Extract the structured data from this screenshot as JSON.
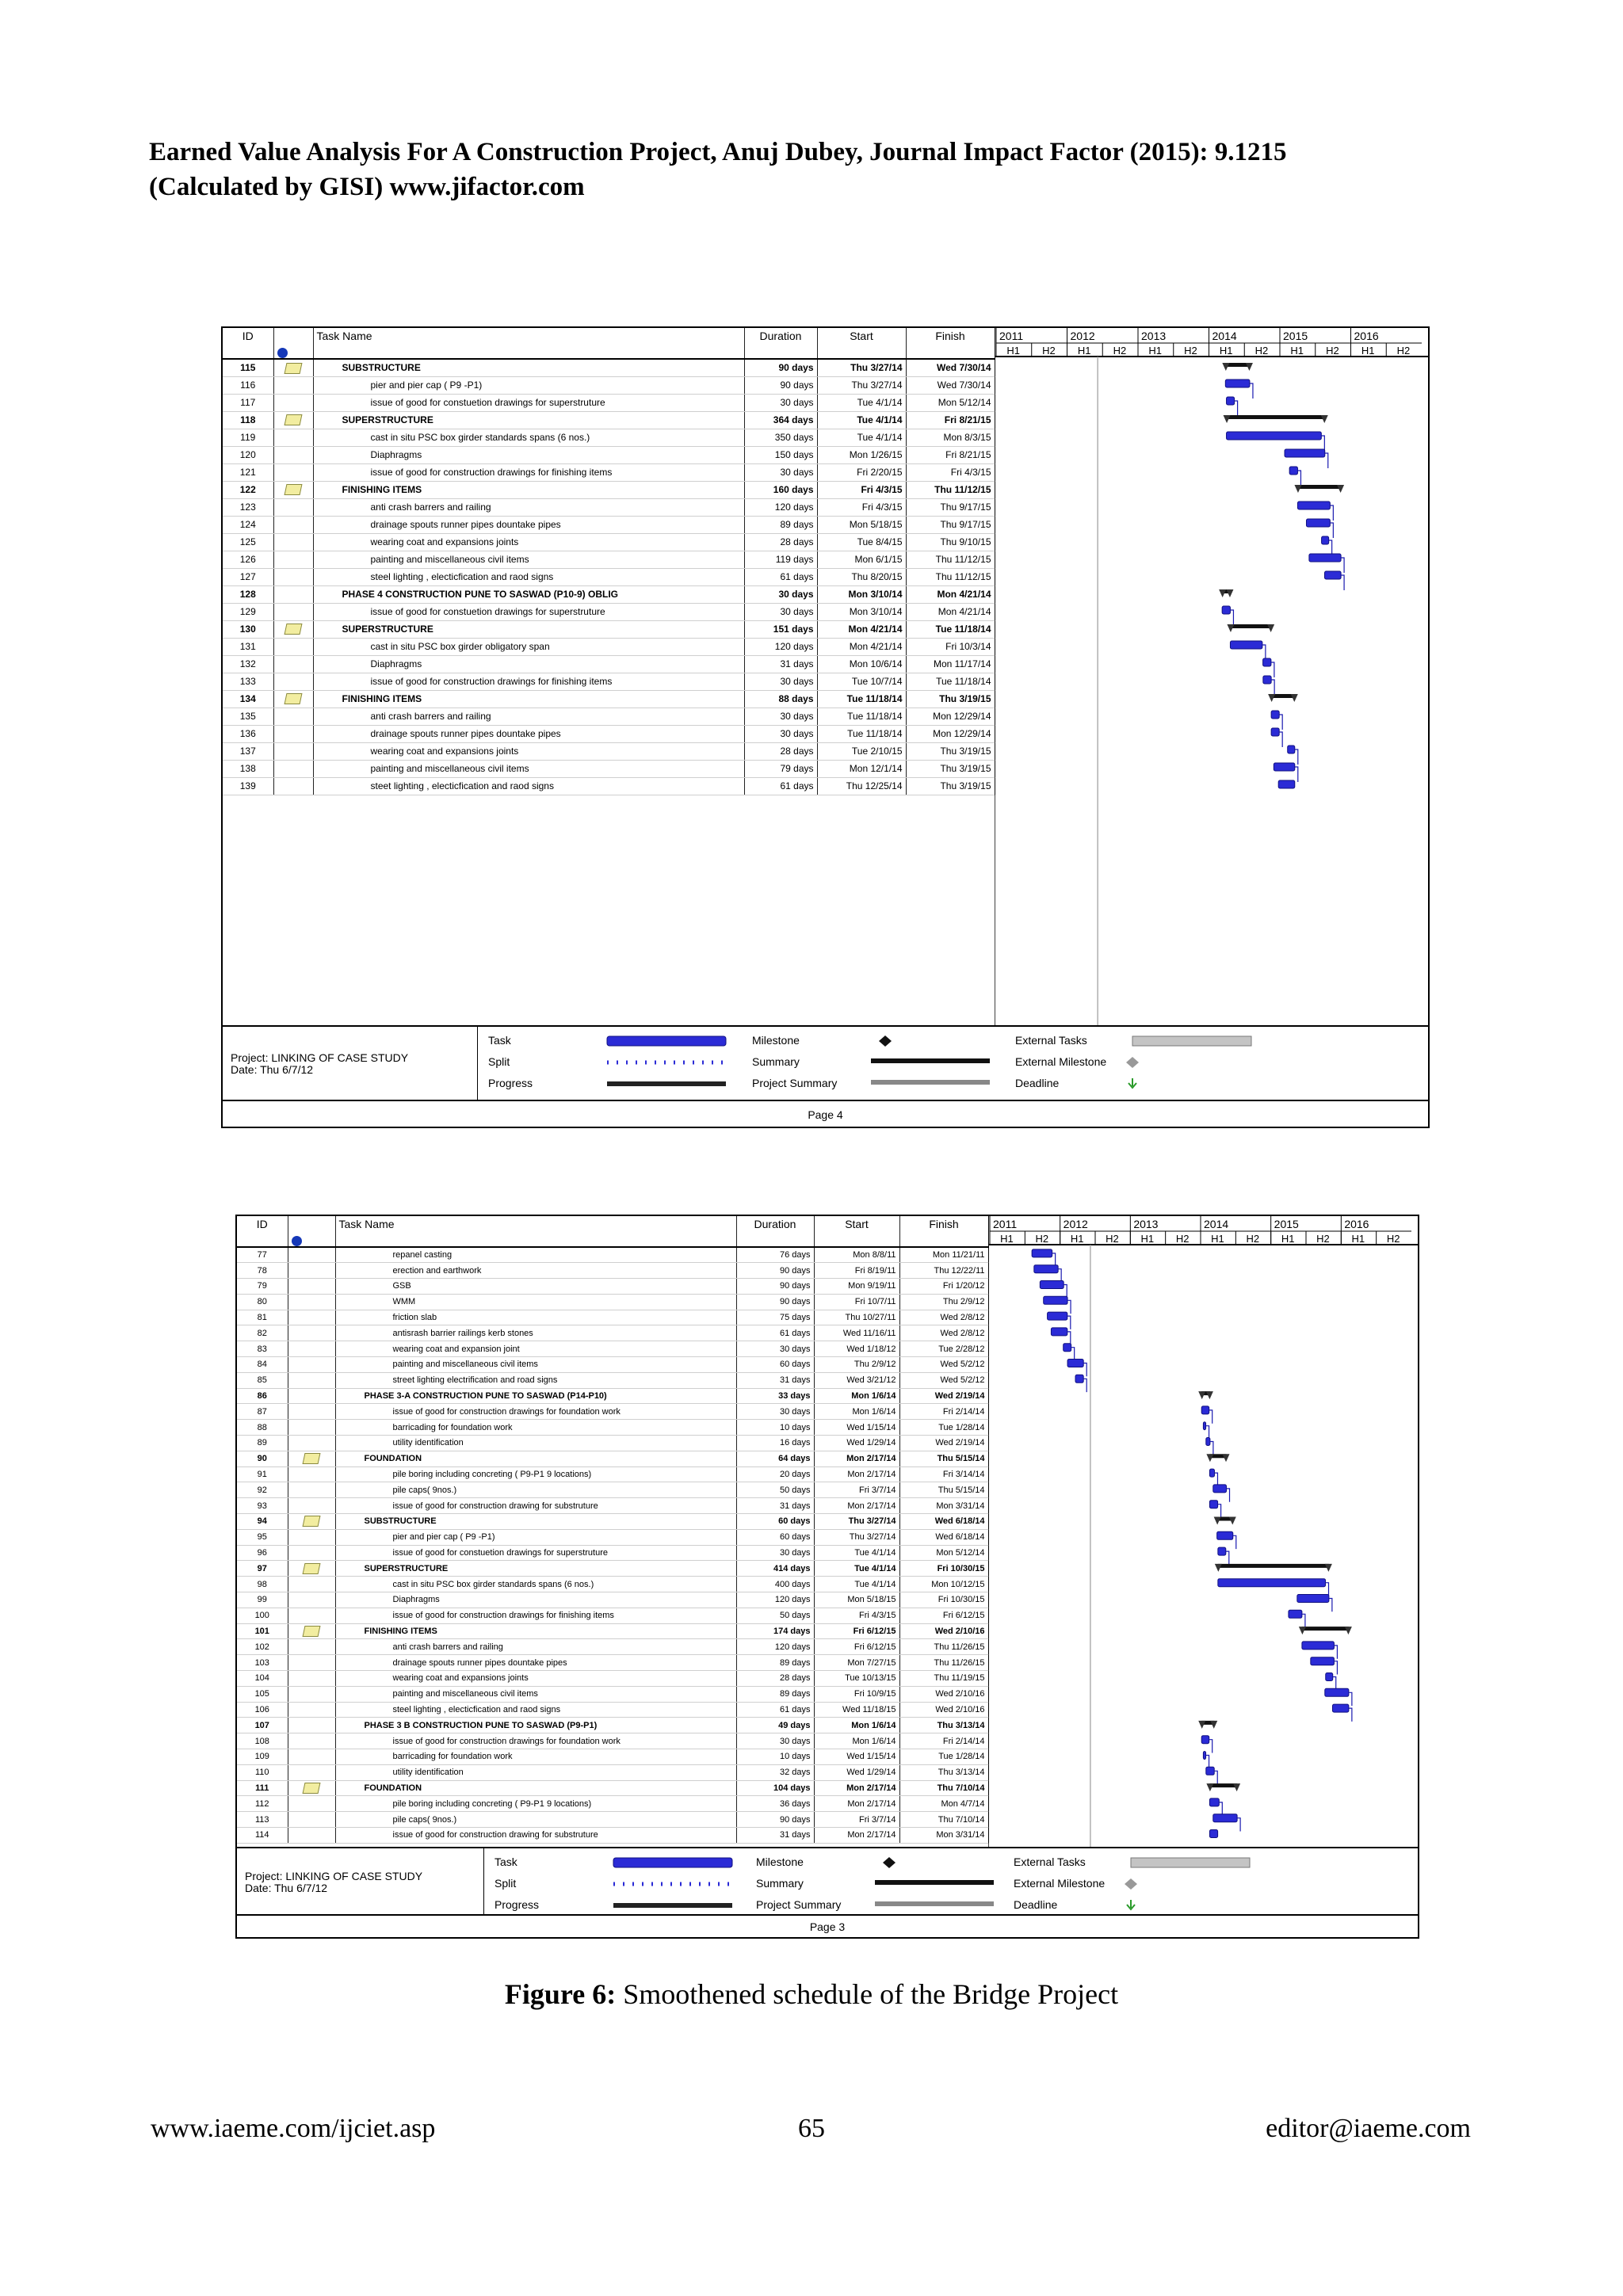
{
  "header": {
    "line1": "Earned Value Analysis For A Construction Project, Anuj Dubey, Journal Impact Factor (2015): 9.1215",
    "line2": "(Calculated by GISI) www.jifactor.com"
  },
  "columns": {
    "id": "ID",
    "info": "i",
    "name": "Task Name",
    "duration": "Duration",
    "start": "Start",
    "finish": "Finish"
  },
  "timescale": {
    "years": [
      "2011",
      "2012",
      "2013",
      "2014",
      "2015",
      "2016"
    ],
    "halves": [
      "H1",
      "H2",
      "H1",
      "H2",
      "H1",
      "H2",
      "H1",
      "H2",
      "H1",
      "H2",
      "H1",
      "H2"
    ]
  },
  "legend": {
    "project": "Project: LINKING OF CASE STUDY",
    "date": "Date: Thu 6/7/12",
    "col1": [
      "Task",
      "Split",
      "Progress"
    ],
    "col2": [
      "Milestone",
      "Summary",
      "Project Summary"
    ],
    "col3": [
      "External Tasks",
      "External Milestone",
      "Deadline"
    ]
  },
  "chart_page4": {
    "page_label": "Page 4",
    "rows": [
      {
        "id": "115",
        "note": true,
        "name": "SUBSTRUCTURE",
        "dur": "90 days",
        "start": "Thu 3/27/14",
        "finish": "Wed 7/30/14",
        "summary": true
      },
      {
        "id": "116",
        "note": false,
        "name": "pier and pier cap ( P9 -P1)",
        "dur": "90 days",
        "start": "Thu 3/27/14",
        "finish": "Wed 7/30/14",
        "summary": false
      },
      {
        "id": "117",
        "note": false,
        "name": "issue of good for constuetion drawings for superstruture",
        "dur": "30 days",
        "start": "Tue 4/1/14",
        "finish": "Mon 5/12/14",
        "summary": false
      },
      {
        "id": "118",
        "note": true,
        "name": "SUPERSTRUCTURE",
        "dur": "364 days",
        "start": "Tue 4/1/14",
        "finish": "Fri 8/21/15",
        "summary": true
      },
      {
        "id": "119",
        "note": false,
        "name": "cast in situ PSC box girder standards spans (6 nos.)",
        "dur": "350 days",
        "start": "Tue 4/1/14",
        "finish": "Mon 8/3/15",
        "summary": false
      },
      {
        "id": "120",
        "note": false,
        "name": "Diaphragms",
        "dur": "150 days",
        "start": "Mon 1/26/15",
        "finish": "Fri 8/21/15",
        "summary": false
      },
      {
        "id": "121",
        "note": false,
        "name": "issue of good for construction drawings for finishing items",
        "dur": "30 days",
        "start": "Fri 2/20/15",
        "finish": "Fri 4/3/15",
        "summary": false
      },
      {
        "id": "122",
        "note": true,
        "name": "FINISHING ITEMS",
        "dur": "160 days",
        "start": "Fri 4/3/15",
        "finish": "Thu 11/12/15",
        "summary": true
      },
      {
        "id": "123",
        "note": false,
        "name": "anti crash barrers and railing",
        "dur": "120 days",
        "start": "Fri 4/3/15",
        "finish": "Thu 9/17/15",
        "summary": false
      },
      {
        "id": "124",
        "note": false,
        "name": "drainage spouts runner pipes dountake pipes",
        "dur": "89 days",
        "start": "Mon 5/18/15",
        "finish": "Thu 9/17/15",
        "summary": false
      },
      {
        "id": "125",
        "note": false,
        "name": "wearing coat and expansions joints",
        "dur": "28 days",
        "start": "Tue 8/4/15",
        "finish": "Thu 9/10/15",
        "summary": false
      },
      {
        "id": "126",
        "note": false,
        "name": "painting and miscellaneous civil items",
        "dur": "119 days",
        "start": "Mon 6/1/15",
        "finish": "Thu 11/12/15",
        "summary": false
      },
      {
        "id": "127",
        "note": false,
        "name": "steel lighting , electicfication and raod signs",
        "dur": "61 days",
        "start": "Thu 8/20/15",
        "finish": "Thu 11/12/15",
        "summary": false
      },
      {
        "id": "128",
        "note": false,
        "name": "PHASE 4 CONSTRUCTION PUNE TO SASWAD (P10-9) OBLIG",
        "dur": "30 days",
        "start": "Mon 3/10/14",
        "finish": "Mon 4/21/14",
        "summary": true
      },
      {
        "id": "129",
        "note": false,
        "name": "issue of good for constuetion drawings for superstruture",
        "dur": "30 days",
        "start": "Mon 3/10/14",
        "finish": "Mon 4/21/14",
        "summary": false
      },
      {
        "id": "130",
        "note": true,
        "name": "SUPERSTRUCTURE",
        "dur": "151 days",
        "start": "Mon 4/21/14",
        "finish": "Tue 11/18/14",
        "summary": true
      },
      {
        "id": "131",
        "note": false,
        "name": "cast in situ PSC box girder obligatory span",
        "dur": "120 days",
        "start": "Mon 4/21/14",
        "finish": "Fri 10/3/14",
        "summary": false
      },
      {
        "id": "132",
        "note": false,
        "name": "Diaphragms",
        "dur": "31 days",
        "start": "Mon 10/6/14",
        "finish": "Mon 11/17/14",
        "summary": false
      },
      {
        "id": "133",
        "note": false,
        "name": "issue of good for construction drawings for finishing items",
        "dur": "30 days",
        "start": "Tue 10/7/14",
        "finish": "Tue 11/18/14",
        "summary": false
      },
      {
        "id": "134",
        "note": true,
        "name": "FINISHING ITEMS",
        "dur": "88 days",
        "start": "Tue 11/18/14",
        "finish": "Thu 3/19/15",
        "summary": true
      },
      {
        "id": "135",
        "note": false,
        "name": "anti crash barrers and railing",
        "dur": "30 days",
        "start": "Tue 11/18/14",
        "finish": "Mon 12/29/14",
        "summary": false
      },
      {
        "id": "136",
        "note": false,
        "name": "drainage spouts runner pipes dountake pipes",
        "dur": "30 days",
        "start": "Tue 11/18/14",
        "finish": "Mon 12/29/14",
        "summary": false
      },
      {
        "id": "137",
        "note": false,
        "name": "wearing coat and expansions joints",
        "dur": "28 days",
        "start": "Tue 2/10/15",
        "finish": "Thu 3/19/15",
        "summary": false
      },
      {
        "id": "138",
        "note": false,
        "name": "painting and miscellaneous civil items",
        "dur": "79 days",
        "start": "Mon 12/1/14",
        "finish": "Thu 3/19/15",
        "summary": false
      },
      {
        "id": "139",
        "note": false,
        "name": "steet lighting , electicfication  and raod signs",
        "dur": "61 days",
        "start": "Thu 12/25/14",
        "finish": "Thu 3/19/15",
        "summary": false
      }
    ]
  },
  "chart_page3": {
    "page_label": "Page 3",
    "rows": [
      {
        "id": "77",
        "note": false,
        "name": "repanel casting",
        "dur": "76 days",
        "start": "Mon 8/8/11",
        "finish": "Mon 11/21/11",
        "summary": false
      },
      {
        "id": "78",
        "note": false,
        "name": "erection and earthwork",
        "dur": "90 days",
        "start": "Fri 8/19/11",
        "finish": "Thu 12/22/11",
        "summary": false
      },
      {
        "id": "79",
        "note": false,
        "name": "GSB",
        "dur": "90 days",
        "start": "Mon 9/19/11",
        "finish": "Fri 1/20/12",
        "summary": false
      },
      {
        "id": "80",
        "note": false,
        "name": "WMM",
        "dur": "90 days",
        "start": "Fri 10/7/11",
        "finish": "Thu 2/9/12",
        "summary": false
      },
      {
        "id": "81",
        "note": false,
        "name": "friction slab",
        "dur": "75 days",
        "start": "Thu 10/27/11",
        "finish": "Wed 2/8/12",
        "summary": false
      },
      {
        "id": "82",
        "note": false,
        "name": "antisrash barrier railings kerb stones",
        "dur": "61 days",
        "start": "Wed 11/16/11",
        "finish": "Wed 2/8/12",
        "summary": false
      },
      {
        "id": "83",
        "note": false,
        "name": "wearing coat and expansion joint",
        "dur": "30 days",
        "start": "Wed 1/18/12",
        "finish": "Tue 2/28/12",
        "summary": false
      },
      {
        "id": "84",
        "note": false,
        "name": "painting and miscellaneous civil items",
        "dur": "60 days",
        "start": "Thu 2/9/12",
        "finish": "Wed 5/2/12",
        "summary": false
      },
      {
        "id": "85",
        "note": false,
        "name": "street lighting electrification and road signs",
        "dur": "31 days",
        "start": "Wed 3/21/12",
        "finish": "Wed 5/2/12",
        "summary": false
      },
      {
        "id": "86",
        "note": false,
        "name": "PHASE 3-A CONSTRUCTION PUNE TO SASWAD (P14-P10)",
        "dur": "33 days",
        "start": "Mon 1/6/14",
        "finish": "Wed 2/19/14",
        "summary": true
      },
      {
        "id": "87",
        "note": false,
        "name": "issue of good for construction drawings for foundation work",
        "dur": "30 days",
        "start": "Mon 1/6/14",
        "finish": "Fri 2/14/14",
        "summary": false
      },
      {
        "id": "88",
        "note": false,
        "name": "barricading for foundation work",
        "dur": "10 days",
        "start": "Wed 1/15/14",
        "finish": "Tue 1/28/14",
        "summary": false
      },
      {
        "id": "89",
        "note": false,
        "name": "utility identification",
        "dur": "16 days",
        "start": "Wed 1/29/14",
        "finish": "Wed 2/19/14",
        "summary": false
      },
      {
        "id": "90",
        "note": true,
        "name": "FOUNDATION",
        "dur": "64 days",
        "start": "Mon 2/17/14",
        "finish": "Thu 5/15/14",
        "summary": true
      },
      {
        "id": "91",
        "note": false,
        "name": "pile boring including concreting ( P9-P1 9 locations)",
        "dur": "20 days",
        "start": "Mon 2/17/14",
        "finish": "Fri 3/14/14",
        "summary": false
      },
      {
        "id": "92",
        "note": false,
        "name": "pile caps( 9nos.)",
        "dur": "50 days",
        "start": "Fri 3/7/14",
        "finish": "Thu 5/15/14",
        "summary": false
      },
      {
        "id": "93",
        "note": false,
        "name": "issue of good for construction drawing for substruture",
        "dur": "31 days",
        "start": "Mon 2/17/14",
        "finish": "Mon 3/31/14",
        "summary": false
      },
      {
        "id": "94",
        "note": true,
        "name": "SUBSTRUCTURE",
        "dur": "60 days",
        "start": "Thu 3/27/14",
        "finish": "Wed 6/18/14",
        "summary": true
      },
      {
        "id": "95",
        "note": false,
        "name": "pier and pier cap ( P9 -P1)",
        "dur": "60 days",
        "start": "Thu 3/27/14",
        "finish": "Wed 6/18/14",
        "summary": false
      },
      {
        "id": "96",
        "note": false,
        "name": "issue of good for constuetion drawings for superstruture",
        "dur": "30 days",
        "start": "Tue 4/1/14",
        "finish": "Mon 5/12/14",
        "summary": false
      },
      {
        "id": "97",
        "note": true,
        "name": "SUPERSTRUCTURE",
        "dur": "414 days",
        "start": "Tue 4/1/14",
        "finish": "Fri 10/30/15",
        "summary": true
      },
      {
        "id": "98",
        "note": false,
        "name": "cast in situ PSC box girder standards spans (6 nos.)",
        "dur": "400 days",
        "start": "Tue 4/1/14",
        "finish": "Mon 10/12/15",
        "summary": false
      },
      {
        "id": "99",
        "note": false,
        "name": "Diaphragms",
        "dur": "120 days",
        "start": "Mon 5/18/15",
        "finish": "Fri 10/30/15",
        "summary": false
      },
      {
        "id": "100",
        "note": false,
        "name": "issue of good for construction drawings for finishing items",
        "dur": "50 days",
        "start": "Fri 4/3/15",
        "finish": "Fri 6/12/15",
        "summary": false
      },
      {
        "id": "101",
        "note": true,
        "name": "FINISHING ITEMS",
        "dur": "174 days",
        "start": "Fri 6/12/15",
        "finish": "Wed 2/10/16",
        "summary": true
      },
      {
        "id": "102",
        "note": false,
        "name": "anti crash barrers and railing",
        "dur": "120 days",
        "start": "Fri 6/12/15",
        "finish": "Thu 11/26/15",
        "summary": false
      },
      {
        "id": "103",
        "note": false,
        "name": "drainage spouts runner pipes dountake pipes",
        "dur": "89 days",
        "start": "Mon 7/27/15",
        "finish": "Thu 11/26/15",
        "summary": false
      },
      {
        "id": "104",
        "note": false,
        "name": "wearing coat and expansions joints",
        "dur": "28 days",
        "start": "Tue 10/13/15",
        "finish": "Thu 11/19/15",
        "summary": false
      },
      {
        "id": "105",
        "note": false,
        "name": "painting and miscellaneous civil items",
        "dur": "89 days",
        "start": "Fri 10/9/15",
        "finish": "Wed 2/10/16",
        "summary": false
      },
      {
        "id": "106",
        "note": false,
        "name": "steel lighting , electicfication  and raod signs",
        "dur": "61 days",
        "start": "Wed 11/18/15",
        "finish": "Wed 2/10/16",
        "summary": false
      },
      {
        "id": "107",
        "note": false,
        "name": "PHASE 3 B CONSTRUCTION PUNE TO SASWAD (P9-P1)",
        "dur": "49 days",
        "start": "Mon 1/6/14",
        "finish": "Thu 3/13/14",
        "summary": true
      },
      {
        "id": "108",
        "note": false,
        "name": "issue of good for construction drawings for foundation work",
        "dur": "30 days",
        "start": "Mon 1/6/14",
        "finish": "Fri 2/14/14",
        "summary": false
      },
      {
        "id": "109",
        "note": false,
        "name": "barricading for foundation work",
        "dur": "10 days",
        "start": "Wed 1/15/14",
        "finish": "Tue 1/28/14",
        "summary": false
      },
      {
        "id": "110",
        "note": false,
        "name": "utility identification",
        "dur": "32 days",
        "start": "Wed 1/29/14",
        "finish": "Thu 3/13/14",
        "summary": false
      },
      {
        "id": "111",
        "note": true,
        "name": "FOUNDATION",
        "dur": "104 days",
        "start": "Mon 2/17/14",
        "finish": "Thu 7/10/14",
        "summary": true
      },
      {
        "id": "112",
        "note": false,
        "name": "pile boring including concreting ( P9-P1 9 locations)",
        "dur": "36 days",
        "start": "Mon 2/17/14",
        "finish": "Mon 4/7/14",
        "summary": false
      },
      {
        "id": "113",
        "note": false,
        "name": "pile caps( 9nos.)",
        "dur": "90 days",
        "start": "Fri 3/7/14",
        "finish": "Thu 7/10/14",
        "summary": false
      },
      {
        "id": "114",
        "note": false,
        "name": "issue of good for construction drawing for substruture",
        "dur": "31 days",
        "start": "Mon 2/17/14",
        "finish": "Mon 3/31/14",
        "summary": false
      }
    ]
  },
  "caption": {
    "label": "Figure 6:",
    "text": " Smoothened schedule of the Bridge Project"
  },
  "footer": {
    "left": "www.iaeme.com/ijciet.asp",
    "page": "65",
    "right": "editor@iaeme.com"
  }
}
